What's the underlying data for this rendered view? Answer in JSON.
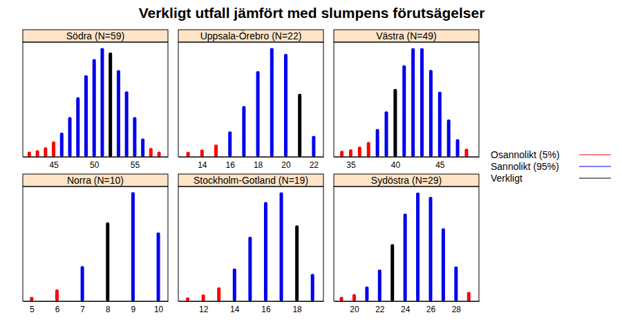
{
  "chart_data": {
    "type": "bar",
    "title": "Verkligt utfall jämfört med slumpens förutsägelser",
    "legend": "right",
    "series": [
      {
        "name": "Osannolikt (5%)",
        "color": "#ff0000"
      },
      {
        "name": "Sannolikt (95%)",
        "color": "#0000ee"
      },
      {
        "name": "Verkligt",
        "color": "#000000"
      }
    ],
    "panels": [
      {
        "type": "bar",
        "title": "Södra (N=59)",
        "tick_labels": "x",
        "x": [
          42,
          43,
          44,
          45,
          46,
          47,
          48,
          49,
          50,
          51,
          52,
          53,
          54,
          55,
          56,
          57,
          58
        ],
        "values": [
          0.007,
          0.009,
          0.013,
          0.021,
          0.033,
          0.054,
          0.081,
          0.111,
          0.133,
          0.148,
          0.142,
          0.118,
          0.089,
          0.054,
          0.025,
          0.012,
          0.007
        ],
        "colors": [
          "#ff0000",
          "#ff0000",
          "#ff0000",
          "#ff0000",
          "#0000ee",
          "#0000ee",
          "#0000ee",
          "#0000ee",
          "#0000ee",
          "#0000ee",
          "#000000",
          "#0000ee",
          "#0000ee",
          "#0000ee",
          "#0000ee",
          "#ff0000",
          "#ff0000"
        ],
        "xlim": [
          41.2,
          59.1
        ],
        "xticks": [
          45,
          50,
          55
        ],
        "ylim": [
          0,
          0.156
        ]
      },
      {
        "type": "bar",
        "title": "Uppsala-Örebro (N=22)",
        "tick_labels": "x",
        "x": [
          13,
          14,
          15,
          16,
          17,
          18,
          19,
          20,
          21,
          22
        ],
        "values": [
          0.011,
          0.016,
          0.027,
          0.056,
          0.112,
          0.189,
          0.24,
          0.227,
          0.139,
          0.046
        ],
        "colors": [
          "#ff0000",
          "#ff0000",
          "#ff0000",
          "#0000ee",
          "#0000ee",
          "#0000ee",
          "#0000ee",
          "#0000ee",
          "#000000",
          "#0000ee"
        ],
        "xlim": [
          12.3,
          22.7
        ],
        "xticks": [
          14,
          16,
          18,
          20,
          22
        ],
        "ylim": [
          0,
          0.253
        ]
      },
      {
        "type": "bar",
        "title": "Västra (N=49)",
        "tick_labels": "x",
        "x": [
          34,
          35,
          36,
          37,
          38,
          39,
          40,
          41,
          42,
          43,
          44,
          45,
          46,
          47,
          48
        ],
        "values": [
          0.009,
          0.011,
          0.015,
          0.022,
          0.041,
          0.067,
          0.1,
          0.135,
          0.16,
          0.16,
          0.128,
          0.096,
          0.055,
          0.026,
          0.012
        ],
        "colors": [
          "#ff0000",
          "#ff0000",
          "#ff0000",
          "#ff0000",
          "#0000ee",
          "#0000ee",
          "#000000",
          "#0000ee",
          "#0000ee",
          "#0000ee",
          "#0000ee",
          "#0000ee",
          "#0000ee",
          "#0000ee",
          "#ff0000"
        ],
        "xlim": [
          33.1,
          49.4
        ],
        "xticks": [
          35,
          40,
          45
        ],
        "ylim": [
          0,
          0.169
        ]
      },
      {
        "type": "bar",
        "title": "Norra (N=10)",
        "tick_labels": "x",
        "x": [
          5,
          6,
          7,
          8,
          9,
          10
        ],
        "values": [
          0.015,
          0.041,
          0.122,
          0.275,
          0.38,
          0.24
        ],
        "colors": [
          "#ff0000",
          "#ff0000",
          "#0000ee",
          "#000000",
          "#0000ee",
          "#0000ee"
        ],
        "xlim": [
          4.65,
          10.38
        ],
        "xticks": [
          5,
          6,
          7,
          8,
          9,
          10
        ],
        "ylim": [
          0,
          0.4
        ]
      },
      {
        "type": "bar",
        "title": "Stockholm-Gotland (N=19)",
        "tick_labels": "x",
        "x": [
          11,
          12,
          13,
          14,
          15,
          16,
          17,
          18,
          19
        ],
        "values": [
          0.009,
          0.016,
          0.033,
          0.078,
          0.154,
          0.237,
          0.26,
          0.181,
          0.065
        ],
        "colors": [
          "#ff0000",
          "#ff0000",
          "#ff0000",
          "#0000ee",
          "#0000ee",
          "#0000ee",
          "#0000ee",
          "#000000",
          "#0000ee"
        ],
        "xlim": [
          10.4,
          19.7
        ],
        "xticks": [
          12,
          14,
          16,
          18
        ],
        "ylim": [
          0,
          0.274
        ]
      },
      {
        "type": "bar",
        "title": "Sydöstra (N=29)",
        "tick_labels": "x",
        "x": [
          19,
          20,
          21,
          22,
          23,
          24,
          25,
          26,
          27,
          28,
          29
        ],
        "values": [
          0.008,
          0.013,
          0.027,
          0.058,
          0.105,
          0.161,
          0.2,
          0.192,
          0.134,
          0.064,
          0.017
        ],
        "colors": [
          "#ff0000",
          "#ff0000",
          "#0000ee",
          "#0000ee",
          "#000000",
          "#0000ee",
          "#0000ee",
          "#0000ee",
          "#0000ee",
          "#0000ee",
          "#ff0000"
        ],
        "xlim": [
          18.4,
          29.8
        ],
        "xticks": [
          20,
          22,
          24,
          26,
          28
        ],
        "ylim": [
          0,
          0.211
        ]
      }
    ]
  }
}
